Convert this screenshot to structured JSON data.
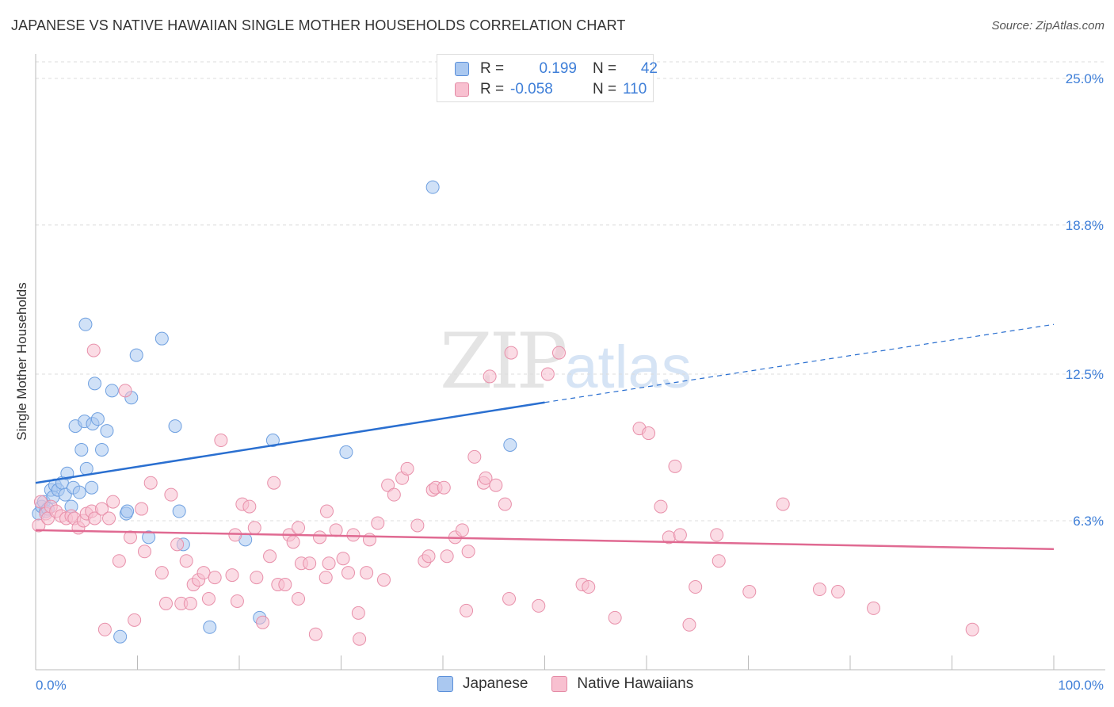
{
  "title": "JAPANESE VS NATIVE HAWAIIAN SINGLE MOTHER HOUSEHOLDS CORRELATION CHART",
  "source": "Source: ZipAtlas.com",
  "watermark": {
    "zip": "ZIP",
    "atlas": "atlas"
  },
  "legend_box": {
    "rows": [
      {
        "r_label": "R =",
        "r_value": "0.199",
        "n_label": "N =",
        "n_value": "42",
        "color": "#aac8f0",
        "border": "#5b8fd9"
      },
      {
        "r_label": "R =",
        "r_value": "-0.058",
        "n_label": "N =",
        "n_value": "110",
        "color": "#f8c0d0",
        "border": "#e48aa5"
      }
    ]
  },
  "chart_data": {
    "type": "scatter",
    "title": "JAPANESE VS NATIVE HAWAIIAN SINGLE MOTHER HOUSEHOLDS CORRELATION CHART",
    "xlabel": "",
    "ylabel": "Single Mother Households",
    "xlim": [
      0,
      100
    ],
    "ylim": [
      0,
      25.7
    ],
    "x_tick_labels": [
      "0.0%",
      "100.0%"
    ],
    "y_ticks": [
      6.3,
      12.5,
      18.8,
      25.0
    ],
    "y_tick_labels": [
      "6.3%",
      "12.5%",
      "18.8%",
      "25.0%"
    ],
    "grid": true,
    "legend_placement": "bottom",
    "series": [
      {
        "name": "Japanese",
        "color": "#6fa0e0",
        "fill": "#aac8f0",
        "trend": {
          "x": [
            0,
            50
          ],
          "y": [
            7.9,
            11.3
          ],
          "dashed_to": [
            100,
            14.6
          ],
          "color": "#2a6fd0"
        },
        "points": [
          [
            0.3,
            6.6
          ],
          [
            0.6,
            6.9
          ],
          [
            0.8,
            7.1
          ],
          [
            1.0,
            6.7
          ],
          [
            1.2,
            6.8
          ],
          [
            1.5,
            7.6
          ],
          [
            1.7,
            7.3
          ],
          [
            1.9,
            7.8
          ],
          [
            2.2,
            7.6
          ],
          [
            2.6,
            7.9
          ],
          [
            2.9,
            7.4
          ],
          [
            3.1,
            8.3
          ],
          [
            3.5,
            6.9
          ],
          [
            3.7,
            7.7
          ],
          [
            3.9,
            10.3
          ],
          [
            4.3,
            7.5
          ],
          [
            4.5,
            9.3
          ],
          [
            4.8,
            10.5
          ],
          [
            5.0,
            8.5
          ],
          [
            4.9,
            14.6
          ],
          [
            5.5,
            7.7
          ],
          [
            5.6,
            10.4
          ],
          [
            5.8,
            12.1
          ],
          [
            6.1,
            10.6
          ],
          [
            6.5,
            9.3
          ],
          [
            7.0,
            10.1
          ],
          [
            7.5,
            11.8
          ],
          [
            8.3,
            1.4
          ],
          [
            8.9,
            6.6
          ],
          [
            9.0,
            6.7
          ],
          [
            9.4,
            11.5
          ],
          [
            9.9,
            13.3
          ],
          [
            11.1,
            5.6
          ],
          [
            12.4,
            14.0
          ],
          [
            13.7,
            10.3
          ],
          [
            14.1,
            6.7
          ],
          [
            14.5,
            5.3
          ],
          [
            17.1,
            1.8
          ],
          [
            20.6,
            5.5
          ],
          [
            22.0,
            2.2
          ],
          [
            23.3,
            9.7
          ],
          [
            30.5,
            9.2
          ],
          [
            39.0,
            20.4
          ],
          [
            46.6,
            9.5
          ]
        ]
      },
      {
        "name": "Native Hawaiians",
        "color": "#e890aa",
        "fill": "#f8c0d0",
        "trend": {
          "x": [
            0,
            100
          ],
          "y": [
            5.9,
            5.1
          ],
          "color": "#e06a92"
        },
        "points": [
          [
            0.3,
            6.1
          ],
          [
            0.5,
            7.1
          ],
          [
            1.0,
            6.6
          ],
          [
            1.2,
            6.4
          ],
          [
            1.5,
            6.9
          ],
          [
            2.0,
            6.7
          ],
          [
            2.5,
            6.5
          ],
          [
            3.0,
            6.4
          ],
          [
            3.5,
            6.5
          ],
          [
            3.8,
            6.4
          ],
          [
            4.2,
            6.0
          ],
          [
            4.7,
            6.3
          ],
          [
            5.0,
            6.6
          ],
          [
            5.5,
            6.7
          ],
          [
            5.8,
            6.4
          ],
          [
            5.7,
            13.5
          ],
          [
            6.5,
            6.8
          ],
          [
            6.8,
            1.7
          ],
          [
            7.2,
            6.4
          ],
          [
            7.6,
            7.1
          ],
          [
            8.2,
            4.6
          ],
          [
            8.8,
            11.8
          ],
          [
            9.3,
            5.6
          ],
          [
            9.7,
            2.1
          ],
          [
            10.4,
            6.8
          ],
          [
            10.7,
            5.0
          ],
          [
            11.3,
            7.9
          ],
          [
            12.4,
            4.1
          ],
          [
            12.8,
            2.8
          ],
          [
            13.3,
            7.4
          ],
          [
            13.9,
            5.3
          ],
          [
            14.3,
            2.8
          ],
          [
            14.8,
            4.6
          ],
          [
            15.2,
            2.8
          ],
          [
            15.5,
            3.6
          ],
          [
            16.0,
            3.8
          ],
          [
            16.5,
            4.1
          ],
          [
            17.0,
            3.0
          ],
          [
            17.6,
            3.9
          ],
          [
            18.2,
            9.7
          ],
          [
            19.3,
            4.0
          ],
          [
            19.6,
            5.7
          ],
          [
            19.8,
            2.9
          ],
          [
            20.3,
            7.0
          ],
          [
            21.0,
            6.9
          ],
          [
            21.5,
            6.0
          ],
          [
            21.7,
            3.9
          ],
          [
            22.3,
            2.0
          ],
          [
            23.0,
            4.8
          ],
          [
            23.4,
            7.9
          ],
          [
            23.8,
            3.6
          ],
          [
            24.5,
            3.6
          ],
          [
            24.9,
            5.7
          ],
          [
            25.3,
            5.4
          ],
          [
            25.8,
            3.0
          ],
          [
            25.8,
            6.0
          ],
          [
            26.1,
            4.5
          ],
          [
            26.9,
            4.5
          ],
          [
            27.5,
            1.5
          ],
          [
            27.9,
            5.6
          ],
          [
            28.5,
            3.9
          ],
          [
            28.8,
            4.5
          ],
          [
            28.6,
            6.7
          ],
          [
            29.5,
            5.9
          ],
          [
            30.2,
            4.7
          ],
          [
            30.7,
            4.1
          ],
          [
            31.2,
            5.7
          ],
          [
            31.7,
            2.4
          ],
          [
            31.8,
            1.3
          ],
          [
            32.5,
            4.1
          ],
          [
            32.8,
            5.5
          ],
          [
            33.6,
            6.2
          ],
          [
            34.2,
            3.8
          ],
          [
            34.6,
            7.8
          ],
          [
            35.2,
            7.4
          ],
          [
            36.0,
            8.1
          ],
          [
            36.5,
            8.5
          ],
          [
            37.5,
            6.1
          ],
          [
            38.2,
            4.6
          ],
          [
            38.6,
            4.8
          ],
          [
            39.0,
            7.6
          ],
          [
            39.3,
            7.7
          ],
          [
            40.1,
            7.7
          ],
          [
            40.4,
            4.8
          ],
          [
            41.2,
            5.6
          ],
          [
            41.9,
            5.9
          ],
          [
            42.3,
            2.5
          ],
          [
            42.5,
            5.0
          ],
          [
            43.1,
            9.0
          ],
          [
            44.0,
            7.9
          ],
          [
            44.2,
            8.1
          ],
          [
            44.6,
            12.4
          ],
          [
            45.2,
            7.8
          ],
          [
            46.1,
            7.0
          ],
          [
            46.5,
            3.0
          ],
          [
            46.7,
            13.4
          ],
          [
            49.4,
            2.7
          ],
          [
            50.3,
            12.5
          ],
          [
            51.4,
            13.4
          ],
          [
            53.7,
            3.6
          ],
          [
            54.3,
            3.5
          ],
          [
            56.9,
            2.2
          ],
          [
            59.3,
            10.2
          ],
          [
            60.2,
            10.0
          ],
          [
            61.4,
            6.9
          ],
          [
            62.2,
            5.6
          ],
          [
            62.8,
            8.6
          ],
          [
            63.3,
            5.7
          ],
          [
            64.2,
            1.9
          ],
          [
            64.8,
            3.5
          ],
          [
            66.9,
            5.7
          ],
          [
            67.1,
            4.6
          ],
          [
            70.1,
            3.3
          ],
          [
            73.4,
            7.0
          ],
          [
            77.0,
            3.4
          ],
          [
            78.8,
            3.3
          ],
          [
            82.3,
            2.6
          ],
          [
            92.0,
            1.7
          ]
        ]
      }
    ]
  },
  "bottom_legend": [
    {
      "label": "Japanese",
      "color": "#aac8f0",
      "border": "#5b8fd9"
    },
    {
      "label": "Native Hawaiians",
      "color": "#f8c0d0",
      "border": "#e48aa5"
    }
  ]
}
